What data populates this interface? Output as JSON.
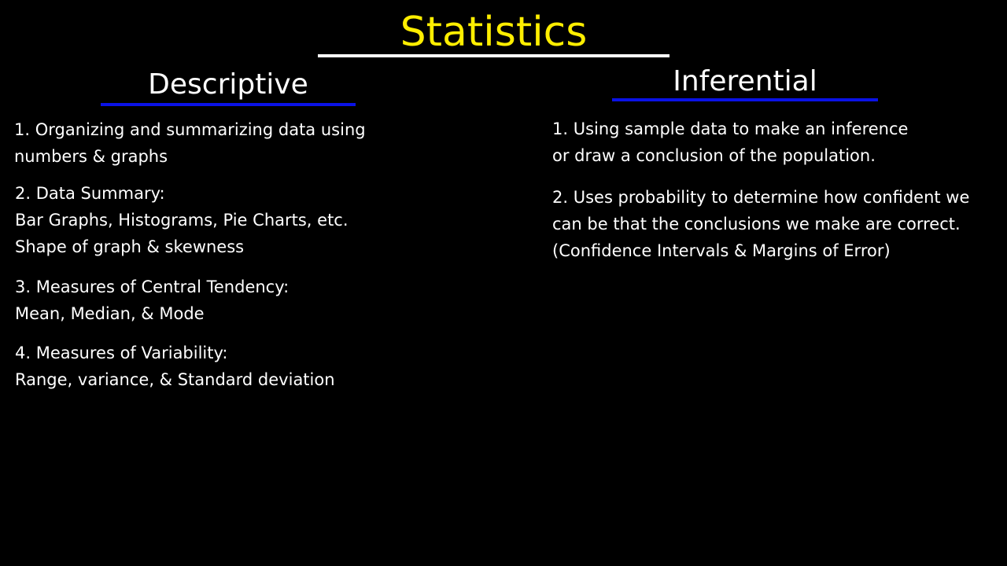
{
  "title": "Statistics",
  "descriptive": {
    "heading": "Descriptive",
    "items": [
      [
        "1.  Organizing and summarizing data using",
        "numbers & graphs"
      ],
      [
        "2. Data Summary:",
        "Bar Graphs, Histograms, Pie Charts, etc.",
        "Shape of graph & skewness"
      ],
      [
        "3. Measures of Central Tendency:",
        "Mean, Median, & Mode"
      ],
      [
        "4.  Measures of Variability:",
        "Range, variance, & Standard deviation"
      ]
    ]
  },
  "inferential": {
    "heading": "Inferential",
    "items": [
      [
        "1.  Using sample data to make an inference",
        "or draw a conclusion of the population."
      ],
      [
        "2.  Uses probability to determine how confident we",
        "can be that the conclusions we make are correct.",
        "(Confidence Intervals & Margins of Error)"
      ]
    ]
  },
  "colors": {
    "background": "#000000",
    "title": "#ffee00",
    "text": "#ffffff",
    "heading_underline": "#0a12e6"
  }
}
